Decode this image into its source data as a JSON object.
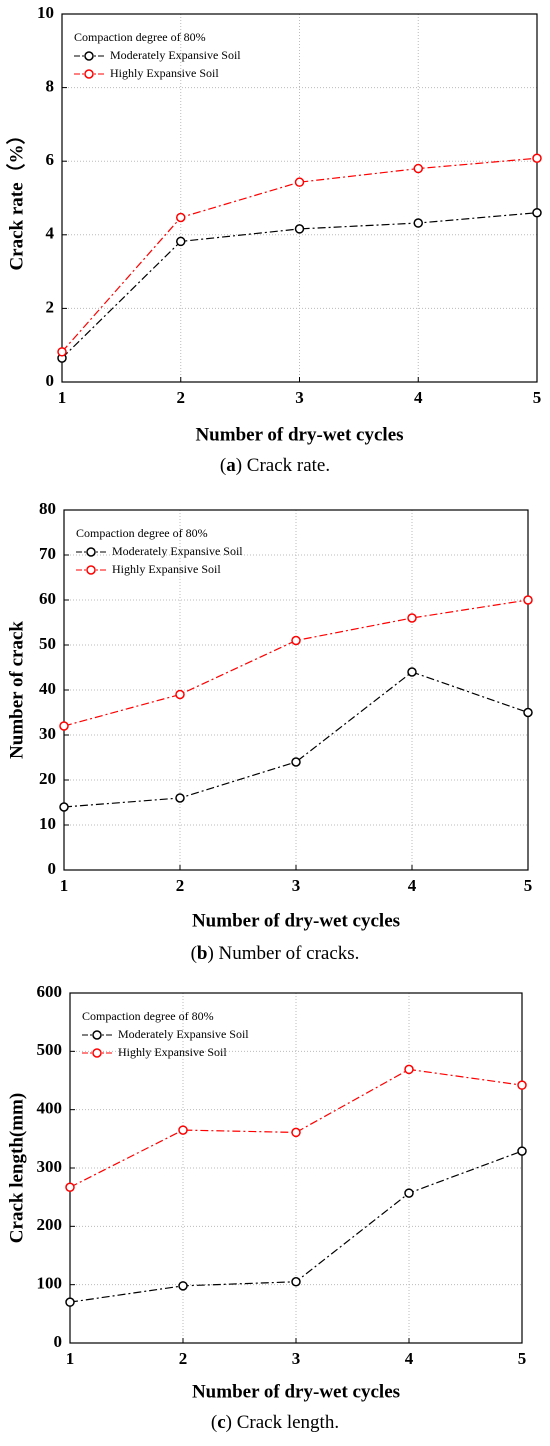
{
  "chart_data": [
    {
      "type": "line",
      "ylabel": "Crack rate（%）",
      "xlabel": "Number of dry-wet cycles",
      "caption": [
        "(",
        "a",
        ") Crack rate."
      ],
      "legend_title": "Compaction degree of 80%",
      "legend": "upper left",
      "grid": true,
      "x": [
        1,
        2,
        3,
        4,
        5
      ],
      "xlim": [
        1,
        5
      ],
      "xticks": [
        1,
        2,
        3,
        4,
        5
      ],
      "ylim": [
        0,
        10
      ],
      "yticks": [
        0,
        2,
        4,
        6,
        8,
        10
      ],
      "series": [
        {
          "name": "Moderately Expansive Soil",
          "color": "#000000",
          "values": [
            0.65,
            3.82,
            4.16,
            4.32,
            4.6
          ]
        },
        {
          "name": "Highly Expansive Soil",
          "color": "#ff0000",
          "values": [
            0.82,
            4.47,
            5.43,
            5.8,
            6.08
          ]
        }
      ]
    },
    {
      "type": "line",
      "ylabel": "Number of crack",
      "xlabel": "Number of dry-wet cycles",
      "caption": [
        "(",
        "b",
        ") Number of cracks."
      ],
      "legend_title": "Compaction degree of 80%",
      "legend": "upper left",
      "grid": true,
      "x": [
        1,
        2,
        3,
        4,
        5
      ],
      "xlim": [
        1,
        5
      ],
      "xticks": [
        1,
        2,
        3,
        4,
        5
      ],
      "ylim": [
        0,
        80
      ],
      "yticks": [
        0,
        10,
        20,
        30,
        40,
        50,
        60,
        70,
        80
      ],
      "series": [
        {
          "name": "Moderately Expansive Soil",
          "color": "#000000",
          "values": [
            14,
            16,
            24,
            44,
            35
          ]
        },
        {
          "name": "Highly Expansive Soil",
          "color": "#ff0000",
          "values": [
            32,
            39,
            51,
            56,
            60
          ]
        }
      ]
    },
    {
      "type": "line",
      "ylabel": "Crack length(mm)",
      "xlabel": "Number of dry-wet cycles",
      "caption": [
        "(",
        "c",
        ") Crack length."
      ],
      "legend_title": "Compaction degree of 80%",
      "legend": "upper left",
      "grid": true,
      "x": [
        1,
        2,
        3,
        4,
        5
      ],
      "xlim": [
        1,
        5
      ],
      "xticks": [
        1,
        2,
        3,
        4,
        5
      ],
      "ylim": [
        0,
        600
      ],
      "yticks": [
        0,
        100,
        200,
        300,
        400,
        500,
        600
      ],
      "series": [
        {
          "name": "Moderately Expansive Soil",
          "color": "#000000",
          "values": [
            70,
            98,
            105,
            257,
            329
          ]
        },
        {
          "name": "Highly Expansive Soil",
          "color": "#ff0000",
          "values": [
            267,
            365,
            361,
            469,
            442
          ]
        }
      ]
    }
  ]
}
